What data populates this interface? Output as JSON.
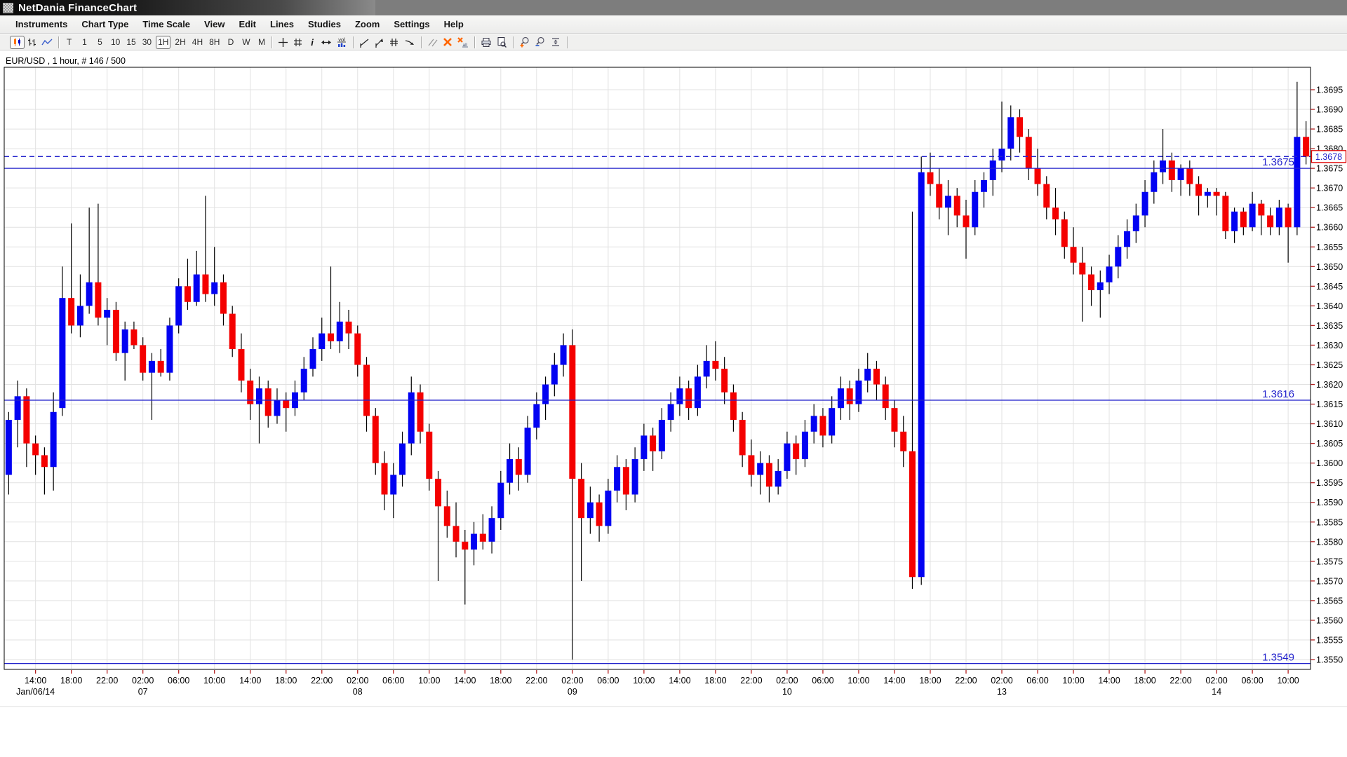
{
  "window": {
    "title": "NetDania FinanceChart"
  },
  "menu_bar": {
    "items": [
      "Instruments",
      "Chart Type",
      "Time Scale",
      "View",
      "Edit",
      "Lines",
      "Studies",
      "Zoom",
      "Settings",
      "Help"
    ]
  },
  "toolbar": {
    "chart_type_buttons": [
      "candlestick",
      "bars",
      "line"
    ],
    "selected_chart_type": "candlestick",
    "timeframes": [
      "T",
      "1",
      "5",
      "10",
      "15",
      "30",
      "1H",
      "2H",
      "4H",
      "8H",
      "D",
      "W",
      "M"
    ],
    "selected_timeframe": "1H",
    "glyphs": {
      "info": "i",
      "volume": "vol",
      "delete_all_suffix": "all"
    }
  },
  "chart": {
    "instrument_label": "EUR/USD , 1 hour, # 146 / 500",
    "current_price": "1.3678",
    "visible_bars": 146,
    "total_bars": 500,
    "price_lines": [
      {
        "price": 1.3675,
        "label": "1.3675",
        "style": "solid"
      },
      {
        "price": 1.3616,
        "label": "1.3616",
        "style": "solid"
      },
      {
        "price": 1.3549,
        "label": "1.3549",
        "style": "solid"
      },
      {
        "price": 1.3678,
        "label": "",
        "style": "dashed"
      }
    ],
    "colors": {
      "up": "#0202f2",
      "down": "#f40000",
      "wick": "#000000",
      "line_blue": "#2323cc",
      "tick_red": "#b22222",
      "grid": "#e2e2e2",
      "border": "#000000",
      "price_box_border": "#e00000",
      "axis_text": "#000000"
    }
  },
  "chart_data": {
    "type": "candlestick",
    "title": "EUR/USD 1 hour",
    "instrument": "EUR/USD",
    "timeframe": "1 hour",
    "y_axis": {
      "min": 1.355,
      "max": 1.3695,
      "step": 0.0005,
      "label_format": "4dp"
    },
    "x_axis": {
      "labels": [
        {
          "i": 3,
          "t": "14:00",
          "d": "Jan/06/14"
        },
        {
          "i": 7,
          "t": "18:00"
        },
        {
          "i": 11,
          "t": "22:00"
        },
        {
          "i": 15,
          "t": "02:00",
          "d": "07"
        },
        {
          "i": 19,
          "t": "06:00"
        },
        {
          "i": 23,
          "t": "10:00"
        },
        {
          "i": 27,
          "t": "14:00"
        },
        {
          "i": 31,
          "t": "18:00"
        },
        {
          "i": 35,
          "t": "22:00"
        },
        {
          "i": 39,
          "t": "02:00",
          "d": "08"
        },
        {
          "i": 43,
          "t": "06:00"
        },
        {
          "i": 47,
          "t": "10:00"
        },
        {
          "i": 51,
          "t": "14:00"
        },
        {
          "i": 55,
          "t": "18:00"
        },
        {
          "i": 59,
          "t": "22:00"
        },
        {
          "i": 63,
          "t": "02:00",
          "d": "09"
        },
        {
          "i": 67,
          "t": "06:00"
        },
        {
          "i": 71,
          "t": "10:00"
        },
        {
          "i": 75,
          "t": "14:00"
        },
        {
          "i": 79,
          "t": "18:00"
        },
        {
          "i": 83,
          "t": "22:00"
        },
        {
          "i": 87,
          "t": "02:00",
          "d": "10"
        },
        {
          "i": 91,
          "t": "06:00"
        },
        {
          "i": 95,
          "t": "10:00"
        },
        {
          "i": 99,
          "t": "14:00"
        },
        {
          "i": 103,
          "t": "18:00"
        },
        {
          "i": 107,
          "t": "22:00"
        },
        {
          "i": 111,
          "t": "02:00",
          "d": "13"
        },
        {
          "i": 115,
          "t": "06:00"
        },
        {
          "i": 119,
          "t": "10:00"
        },
        {
          "i": 123,
          "t": "14:00"
        },
        {
          "i": 127,
          "t": "18:00"
        },
        {
          "i": 131,
          "t": "22:00"
        },
        {
          "i": 135,
          "t": "02:00",
          "d": "14"
        },
        {
          "i": 139,
          "t": "06:00"
        },
        {
          "i": 143,
          "t": "10:00"
        }
      ]
    },
    "candles": [
      [
        1.3597,
        1.3613,
        1.3592,
        1.3611
      ],
      [
        1.3611,
        1.3621,
        1.3604,
        1.3617
      ],
      [
        1.3617,
        1.3619,
        1.3599,
        1.3605
      ],
      [
        1.3605,
        1.3607,
        1.3597,
        1.3602
      ],
      [
        1.3602,
        1.3604,
        1.3592,
        1.3599
      ],
      [
        1.3599,
        1.3618,
        1.3593,
        1.3613
      ],
      [
        1.3614,
        1.365,
        1.3612,
        1.3642
      ],
      [
        1.3642,
        1.3661,
        1.3633,
        1.3635
      ],
      [
        1.3635,
        1.3648,
        1.3632,
        1.364
      ],
      [
        1.364,
        1.3665,
        1.3638,
        1.3646
      ],
      [
        1.3646,
        1.3666,
        1.3635,
        1.3637
      ],
      [
        1.3637,
        1.3642,
        1.363,
        1.3639
      ],
      [
        1.3639,
        1.3641,
        1.3626,
        1.3628
      ],
      [
        1.3628,
        1.3636,
        1.3621,
        1.3634
      ],
      [
        1.3634,
        1.3636,
        1.3629,
        1.363
      ],
      [
        1.363,
        1.3632,
        1.3621,
        1.3623
      ],
      [
        1.3623,
        1.3628,
        1.3611,
        1.3626
      ],
      [
        1.3626,
        1.3629,
        1.3622,
        1.3623
      ],
      [
        1.3623,
        1.3637,
        1.3621,
        1.3635
      ],
      [
        1.3635,
        1.3647,
        1.3633,
        1.3645
      ],
      [
        1.3645,
        1.3652,
        1.3639,
        1.3641
      ],
      [
        1.3641,
        1.3654,
        1.364,
        1.3648
      ],
      [
        1.3648,
        1.3668,
        1.3641,
        1.3643
      ],
      [
        1.3643,
        1.3655,
        1.364,
        1.3646
      ],
      [
        1.3646,
        1.3648,
        1.3635,
        1.3638
      ],
      [
        1.3638,
        1.364,
        1.3627,
        1.3629
      ],
      [
        1.3629,
        1.3633,
        1.3618,
        1.3621
      ],
      [
        1.3621,
        1.3624,
        1.3611,
        1.3615
      ],
      [
        1.3615,
        1.3622,
        1.3605,
        1.3619
      ],
      [
        1.3619,
        1.3621,
        1.3609,
        1.3612
      ],
      [
        1.3612,
        1.3619,
        1.361,
        1.3616
      ],
      [
        1.3616,
        1.3618,
        1.3608,
        1.3614
      ],
      [
        1.3614,
        1.3621,
        1.3612,
        1.3618
      ],
      [
        1.3618,
        1.3627,
        1.3616,
        1.3624
      ],
      [
        1.3624,
        1.3632,
        1.3622,
        1.3629
      ],
      [
        1.3629,
        1.3637,
        1.3626,
        1.3633
      ],
      [
        1.3633,
        1.365,
        1.3629,
        1.3631
      ],
      [
        1.3631,
        1.3641,
        1.3628,
        1.3636
      ],
      [
        1.3636,
        1.3639,
        1.3629,
        1.3633
      ],
      [
        1.3633,
        1.3635,
        1.3622,
        1.3625
      ],
      [
        1.3625,
        1.3627,
        1.3608,
        1.3612
      ],
      [
        1.3612,
        1.3614,
        1.3597,
        1.36
      ],
      [
        1.36,
        1.3603,
        1.3588,
        1.3592
      ],
      [
        1.3592,
        1.36,
        1.3586,
        1.3597
      ],
      [
        1.3597,
        1.3608,
        1.3594,
        1.3605
      ],
      [
        1.3605,
        1.3622,
        1.3602,
        1.3618
      ],
      [
        1.3618,
        1.362,
        1.3605,
        1.3608
      ],
      [
        1.3608,
        1.361,
        1.3593,
        1.3596
      ],
      [
        1.3596,
        1.3598,
        1.357,
        1.3589
      ],
      [
        1.3589,
        1.3593,
        1.3581,
        1.3584
      ],
      [
        1.3584,
        1.359,
        1.3576,
        1.358
      ],
      [
        1.358,
        1.3583,
        1.3564,
        1.3578
      ],
      [
        1.3578,
        1.3585,
        1.3574,
        1.3582
      ],
      [
        1.3582,
        1.3587,
        1.3578,
        1.358
      ],
      [
        1.358,
        1.3589,
        1.3577,
        1.3586
      ],
      [
        1.3586,
        1.3598,
        1.3583,
        1.3595
      ],
      [
        1.3595,
        1.3605,
        1.3592,
        1.3601
      ],
      [
        1.3601,
        1.3604,
        1.3593,
        1.3597
      ],
      [
        1.3597,
        1.3612,
        1.3595,
        1.3609
      ],
      [
        1.3609,
        1.3618,
        1.3606,
        1.3615
      ],
      [
        1.3615,
        1.3622,
        1.3611,
        1.362
      ],
      [
        1.362,
        1.3628,
        1.3617,
        1.3625
      ],
      [
        1.3625,
        1.3633,
        1.3622,
        1.363
      ],
      [
        1.363,
        1.3634,
        1.355,
        1.3596
      ],
      [
        1.3596,
        1.36,
        1.357,
        1.3586
      ],
      [
        1.3586,
        1.3594,
        1.3582,
        1.359
      ],
      [
        1.359,
        1.3592,
        1.358,
        1.3584
      ],
      [
        1.3584,
        1.3596,
        1.3582,
        1.3593
      ],
      [
        1.3593,
        1.3602,
        1.359,
        1.3599
      ],
      [
        1.3599,
        1.3601,
        1.3588,
        1.3592
      ],
      [
        1.3592,
        1.3604,
        1.359,
        1.3601
      ],
      [
        1.3601,
        1.361,
        1.3598,
        1.3607
      ],
      [
        1.3607,
        1.3609,
        1.3598,
        1.3603
      ],
      [
        1.3603,
        1.3614,
        1.3601,
        1.3611
      ],
      [
        1.3611,
        1.3618,
        1.3608,
        1.3615
      ],
      [
        1.3615,
        1.3622,
        1.3612,
        1.3619
      ],
      [
        1.3619,
        1.3621,
        1.3611,
        1.3614
      ],
      [
        1.3614,
        1.3625,
        1.3612,
        1.3622
      ],
      [
        1.3622,
        1.363,
        1.3619,
        1.3626
      ],
      [
        1.3626,
        1.3631,
        1.3621,
        1.3624
      ],
      [
        1.3624,
        1.3627,
        1.3615,
        1.3618
      ],
      [
        1.3618,
        1.362,
        1.3608,
        1.3611
      ],
      [
        1.3611,
        1.3613,
        1.3599,
        1.3602
      ],
      [
        1.3602,
        1.3606,
        1.3594,
        1.3597
      ],
      [
        1.3597,
        1.3603,
        1.3592,
        1.36
      ],
      [
        1.36,
        1.3602,
        1.359,
        1.3594
      ],
      [
        1.3594,
        1.3601,
        1.3592,
        1.3598
      ],
      [
        1.3598,
        1.3608,
        1.3596,
        1.3605
      ],
      [
        1.3605,
        1.3607,
        1.3597,
        1.3601
      ],
      [
        1.3601,
        1.3611,
        1.3599,
        1.3608
      ],
      [
        1.3608,
        1.3615,
        1.3605,
        1.3612
      ],
      [
        1.3612,
        1.3614,
        1.3604,
        1.3607
      ],
      [
        1.3607,
        1.3617,
        1.3605,
        1.3614
      ],
      [
        1.3614,
        1.3622,
        1.3611,
        1.3619
      ],
      [
        1.3619,
        1.3621,
        1.3611,
        1.3615
      ],
      [
        1.3615,
        1.3624,
        1.3613,
        1.3621
      ],
      [
        1.3621,
        1.3628,
        1.3618,
        1.3624
      ],
      [
        1.3624,
        1.3626,
        1.3616,
        1.362
      ],
      [
        1.362,
        1.3622,
        1.3611,
        1.3614
      ],
      [
        1.3614,
        1.3616,
        1.3604,
        1.3608
      ],
      [
        1.3608,
        1.3612,
        1.3599,
        1.3603
      ],
      [
        1.3603,
        1.3664,
        1.3568,
        1.3571
      ],
      [
        1.3571,
        1.3678,
        1.3569,
        1.3674
      ],
      [
        1.3674,
        1.3679,
        1.3668,
        1.3671
      ],
      [
        1.3671,
        1.3675,
        1.3662,
        1.3665
      ],
      [
        1.3665,
        1.3672,
        1.3658,
        1.3668
      ],
      [
        1.3668,
        1.367,
        1.366,
        1.3663
      ],
      [
        1.3663,
        1.3667,
        1.3652,
        1.366
      ],
      [
        1.366,
        1.3672,
        1.3658,
        1.3669
      ],
      [
        1.3669,
        1.3674,
        1.3665,
        1.3672
      ],
      [
        1.3672,
        1.368,
        1.3668,
        1.3677
      ],
      [
        1.3677,
        1.3692,
        1.3674,
        1.368
      ],
      [
        1.368,
        1.3691,
        1.3677,
        1.3688
      ],
      [
        1.3688,
        1.369,
        1.3679,
        1.3683
      ],
      [
        1.3683,
        1.3685,
        1.3672,
        1.3675
      ],
      [
        1.3675,
        1.368,
        1.3668,
        1.3671
      ],
      [
        1.3671,
        1.3673,
        1.3662,
        1.3665
      ],
      [
        1.3665,
        1.367,
        1.3658,
        1.3662
      ],
      [
        1.3662,
        1.3664,
        1.3652,
        1.3655
      ],
      [
        1.3655,
        1.366,
        1.3648,
        1.3651
      ],
      [
        1.3651,
        1.3655,
        1.3636,
        1.3648
      ],
      [
        1.3648,
        1.365,
        1.364,
        1.3644
      ],
      [
        1.3644,
        1.3649,
        1.3637,
        1.3646
      ],
      [
        1.3646,
        1.3653,
        1.3643,
        1.365
      ],
      [
        1.365,
        1.3658,
        1.3647,
        1.3655
      ],
      [
        1.3655,
        1.3662,
        1.3652,
        1.3659
      ],
      [
        1.3659,
        1.3666,
        1.3656,
        1.3663
      ],
      [
        1.3663,
        1.3672,
        1.366,
        1.3669
      ],
      [
        1.3669,
        1.3677,
        1.3666,
        1.3674
      ],
      [
        1.3674,
        1.3685,
        1.3671,
        1.3677
      ],
      [
        1.3677,
        1.3679,
        1.3669,
        1.3672
      ],
      [
        1.3672,
        1.3676,
        1.3668,
        1.3675
      ],
      [
        1.3675,
        1.3677,
        1.3668,
        1.3671
      ],
      [
        1.3671,
        1.3673,
        1.3663,
        1.3668
      ],
      [
        1.3668,
        1.367,
        1.3665,
        1.3669
      ],
      [
        1.3669,
        1.367,
        1.3663,
        1.3668
      ],
      [
        1.3668,
        1.3669,
        1.3657,
        1.3659
      ],
      [
        1.3659,
        1.3665,
        1.3656,
        1.3664
      ],
      [
        1.3664,
        1.3665,
        1.3658,
        1.366
      ],
      [
        1.366,
        1.3669,
        1.3659,
        1.3666
      ],
      [
        1.3666,
        1.3667,
        1.3658,
        1.3663
      ],
      [
        1.3663,
        1.3665,
        1.3658,
        1.366
      ],
      [
        1.366,
        1.3667,
        1.3658,
        1.3665
      ],
      [
        1.3665,
        1.3666,
        1.3651,
        1.366
      ],
      [
        1.366,
        1.3697,
        1.3658,
        1.3683
      ],
      [
        1.3683,
        1.3687,
        1.3676,
        1.3678
      ]
    ]
  }
}
